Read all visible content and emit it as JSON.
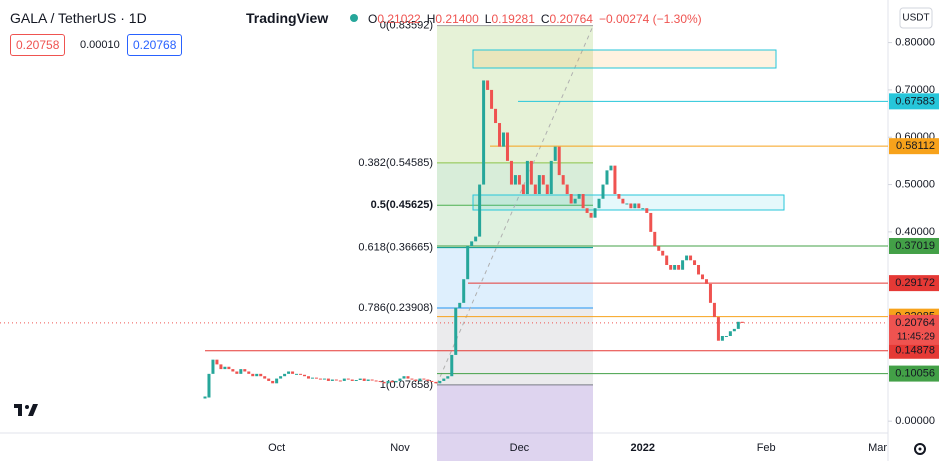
{
  "header": {
    "symbol": "GALA / TetherUS · 1D",
    "brand": "TradingView",
    "ohlc": [
      {
        "label": "O",
        "value": "0.21022"
      },
      {
        "label": "H",
        "value": "0.21400"
      },
      {
        "label": "L",
        "value": "0.19281"
      },
      {
        "label": "C",
        "value": "0.20764"
      }
    ],
    "change": "−0.00274 (−1.30%)"
  },
  "order": {
    "sell": "0.20758",
    "spread": "0.00010",
    "buy": "0.20768"
  },
  "currency": "USDT",
  "countdown": "11:45:29",
  "chart_data": {
    "type": "candlestick",
    "up_color": "#26a69a",
    "down_color": "#ef5350",
    "categories": [
      null,
      null,
      null,
      null,
      null,
      null,
      null,
      null,
      null,
      null,
      null,
      null,
      null,
      null,
      null,
      null,
      null,
      null,
      "Oct",
      null,
      null,
      null,
      null,
      null,
      null,
      null,
      null,
      null,
      null,
      null,
      null,
      null,
      null,
      null,
      null,
      null,
      null,
      null,
      null,
      null,
      null,
      null,
      null,
      null,
      null,
      null,
      null,
      null,
      null,
      "Nov",
      null,
      null,
      null,
      null,
      null,
      null,
      null,
      null,
      null,
      null,
      null,
      null,
      null,
      null,
      null,
      null,
      null,
      null,
      null,
      null,
      null,
      null,
      null,
      null,
      null,
      null,
      null,
      null,
      null,
      "Dec",
      null,
      null,
      null,
      null,
      null,
      null,
      null,
      null,
      null,
      null,
      null,
      null,
      null,
      null,
      null,
      null,
      null,
      null,
      null,
      null,
      null,
      null,
      null,
      null,
      null,
      null,
      null,
      null,
      null,
      null,
      "2022",
      null,
      null,
      null,
      null,
      null,
      null,
      null,
      null,
      null,
      null,
      null,
      null,
      null,
      null,
      null,
      null,
      null,
      null,
      null,
      null,
      null,
      null,
      null,
      null,
      null,
      null,
      null,
      null,
      null,
      null,
      "Feb",
      null,
      null,
      null,
      null,
      null,
      null,
      null,
      null,
      null,
      null,
      null,
      null,
      null,
      null,
      null,
      null,
      null,
      null,
      null,
      null,
      null,
      null,
      null,
      null,
      null,
      null,
      null,
      "Mar"
    ],
    "values": [
      0.05,
      0.1,
      0.13,
      0.12,
      0.11,
      0.115,
      0.11,
      0.105,
      0.1,
      0.11,
      0.105,
      0.1,
      0.095,
      0.1,
      0.095,
      0.09,
      0.085,
      0.08,
      0.09,
      0.095,
      0.1,
      0.105,
      0.1,
      0.1,
      0.098,
      0.095,
      0.09,
      0.092,
      0.09,
      0.088,
      0.09,
      0.085,
      0.088,
      0.086,
      0.085,
      0.09,
      0.088,
      0.085,
      0.087,
      0.09,
      0.085,
      0.088,
      0.086,
      0.085,
      0.083,
      0.08,
      0.085,
      0.082,
      0.085,
      0.09,
      0.095,
      0.09,
      0.088,
      0.085,
      0.09,
      0.088,
      0.085,
      0.083,
      0.08,
      0.085,
      0.09,
      0.095,
      0.14,
      0.24,
      0.25,
      0.3,
      0.37,
      0.38,
      0.39,
      0.5,
      0.72,
      0.7,
      0.66,
      0.63,
      0.58,
      0.61,
      0.55,
      0.5,
      0.52,
      0.5,
      0.48,
      0.55,
      0.5,
      0.48,
      0.52,
      0.5,
      0.48,
      0.55,
      0.58,
      0.52,
      0.5,
      0.48,
      0.46,
      0.47,
      0.48,
      0.45,
      0.44,
      0.43,
      0.45,
      0.47,
      0.5,
      0.53,
      0.54,
      0.48,
      0.47,
      0.46,
      0.46,
      0.45,
      0.46,
      0.45,
      0.45,
      0.44,
      0.4,
      0.37,
      0.36,
      0.35,
      0.33,
      0.32,
      0.33,
      0.32,
      0.34,
      0.35,
      0.34,
      0.33,
      0.31,
      0.3,
      0.29,
      0.25,
      0.22,
      0.17,
      0.18,
      0.18,
      0.19,
      0.195,
      0.21,
      0.20764,
      null,
      null,
      null,
      null,
      null,
      null,
      null,
      null,
      null,
      null,
      null,
      null,
      null,
      null,
      null,
      null,
      null,
      null,
      null,
      null,
      null,
      null,
      null,
      null,
      null,
      null,
      null,
      null,
      null,
      null,
      null,
      null,
      null,
      null
    ],
    "ylim": [
      -0.025,
      0.89
    ],
    "yticks": [
      {
        "value": 0.8,
        "label": "0.80000"
      },
      {
        "value": 0.7,
        "label": "0.70000"
      },
      {
        "value": 0.6,
        "label": "0.60000"
      },
      {
        "value": 0.5,
        "label": "0.50000"
      },
      {
        "value": 0.4,
        "label": "0.40000"
      },
      {
        "value": 0,
        "label": "0.00000"
      }
    ],
    "current_price": 0.20764,
    "levels": [
      {
        "value": 0.67583,
        "color": "#26c6da"
      },
      {
        "value": 0.58112,
        "color": "#f7a21b"
      },
      {
        "value": 0.37019,
        "color": "#43a047"
      },
      {
        "value": 0.29172,
        "color": "#e53935"
      },
      {
        "value": 0.22085,
        "color": "#f7a21b"
      },
      {
        "value": 0.14878,
        "color": "#e53935"
      },
      {
        "value": 0.10056,
        "color": "#43a047"
      }
    ],
    "fib": [
      {
        "label": "0(0.83592)",
        "value": 0.83592,
        "color": "#9e9e9e"
      },
      {
        "label": "0.382(0.54585)",
        "value": 0.54585,
        "color": "#8bc34a"
      },
      {
        "label": "0.5(0.45625)",
        "value": 0.45625,
        "color": "#4caf50"
      },
      {
        "label": "0.618(0.36665)",
        "value": 0.36665,
        "color": "#009688"
      },
      {
        "label": "0.786(0.23908)",
        "value": 0.23908,
        "color": "#2196f3"
      },
      {
        "label": "1(0.07658)",
        "value": 0.07658,
        "color": "#787b86"
      }
    ]
  }
}
